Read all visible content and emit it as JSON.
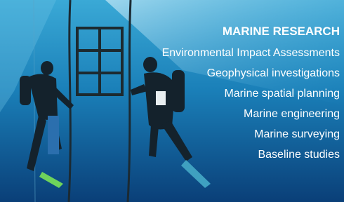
{
  "heading": "MARINE RESEARCH",
  "items": [
    "Environmental Impact Assessments",
    "Geophysical investigations",
    "Marine spatial planning",
    "Marine engineering",
    "Marine surveying",
    "Baseline studies"
  ]
}
